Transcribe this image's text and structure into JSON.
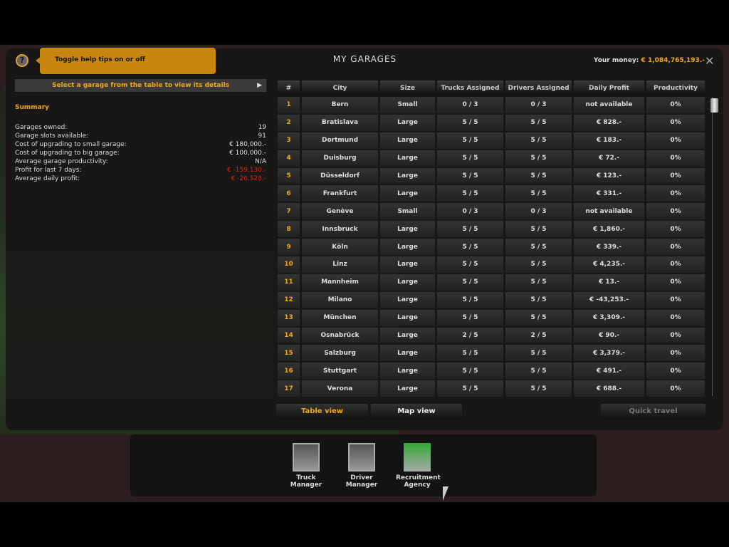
{
  "header": {
    "title": "MY GARAGES",
    "money_label": "Your money:",
    "money_value": "€ 1,084,765,193.-",
    "help_tip": "Toggle help tips on or off",
    "help_icon": "?"
  },
  "left": {
    "select_prompt": "Select a garage from the table to view its details",
    "summary_title": "Summary",
    "summary": [
      {
        "label": "Garages owned:",
        "value": "19"
      },
      {
        "label": "Garage slots available:",
        "value": "91"
      },
      {
        "label": "Cost of upgrading to small garage:",
        "value": "€ 180,000.-"
      },
      {
        "label": "Cost of upgrading to big garage:",
        "value": "€ 100,000.-"
      },
      {
        "label": "Average garage productivity:",
        "value": "N/A"
      },
      {
        "label": "Profit for last 7 days:",
        "value": "€ -159,130.-",
        "negative": true
      },
      {
        "label": "Average daily profit:",
        "value": "€ -26,528.-",
        "negative": true
      }
    ]
  },
  "table": {
    "columns": [
      "#",
      "City",
      "Size",
      "Trucks Assigned",
      "Drivers Assigned",
      "Daily Profit",
      "Productivity"
    ],
    "rows": [
      [
        "1",
        "Bern",
        "Small",
        "0 / 3",
        "0 / 3",
        "not available",
        "0%"
      ],
      [
        "2",
        "Bratislava",
        "Large",
        "5 / 5",
        "5 / 5",
        "€ 828.-",
        "0%"
      ],
      [
        "3",
        "Dortmund",
        "Large",
        "5 / 5",
        "5 / 5",
        "€ 183.-",
        "0%"
      ],
      [
        "4",
        "Duisburg",
        "Large",
        "5 / 5",
        "5 / 5",
        "€ 72.-",
        "0%"
      ],
      [
        "5",
        "Düsseldorf",
        "Large",
        "5 / 5",
        "5 / 5",
        "€ 123.-",
        "0%"
      ],
      [
        "6",
        "Frankfurt",
        "Large",
        "5 / 5",
        "5 / 5",
        "€ 331.-",
        "0%"
      ],
      [
        "7",
        "Genève",
        "Small",
        "0 / 3",
        "0 / 3",
        "not available",
        "0%"
      ],
      [
        "8",
        "Innsbruck",
        "Large",
        "5 / 5",
        "5 / 5",
        "€ 1,860.-",
        "0%"
      ],
      [
        "9",
        "Köln",
        "Large",
        "5 / 5",
        "5 / 5",
        "€ 339.-",
        "0%"
      ],
      [
        "10",
        "Linz",
        "Large",
        "5 / 5",
        "5 / 5",
        "€ 4,235.-",
        "0%"
      ],
      [
        "11",
        "Mannheim",
        "Large",
        "5 / 5",
        "5 / 5",
        "€ 13.-",
        "0%"
      ],
      [
        "12",
        "Milano",
        "Large",
        "5 / 5",
        "5 / 5",
        "€ -43,253.-",
        "0%"
      ],
      [
        "13",
        "München",
        "Large",
        "5 / 5",
        "5 / 5",
        "€ 3,309.-",
        "0%"
      ],
      [
        "14",
        "Osnabrück",
        "Large",
        "2 / 5",
        "2 / 5",
        "€ 90.-",
        "0%"
      ],
      [
        "15",
        "Salzburg",
        "Large",
        "5 / 5",
        "5 / 5",
        "€ 3,379.-",
        "0%"
      ],
      [
        "16",
        "Stuttgart",
        "Large",
        "5 / 5",
        "5 / 5",
        "€ 491.-",
        "0%"
      ],
      [
        "17",
        "Verona",
        "Large",
        "5 / 5",
        "5 / 5",
        "€ 688.-",
        "0%"
      ]
    ]
  },
  "buttons": {
    "table_view": "Table view",
    "map_view": "Map view",
    "quick_travel": "Quick travel"
  },
  "dock": [
    {
      "label1": "Truck",
      "label2": "Manager"
    },
    {
      "label1": "Driver",
      "label2": "Manager"
    },
    {
      "label1": "Recruitment",
      "label2": "Agency"
    }
  ],
  "colors": {
    "accent": "#f0a818",
    "negative": "#e02020"
  }
}
